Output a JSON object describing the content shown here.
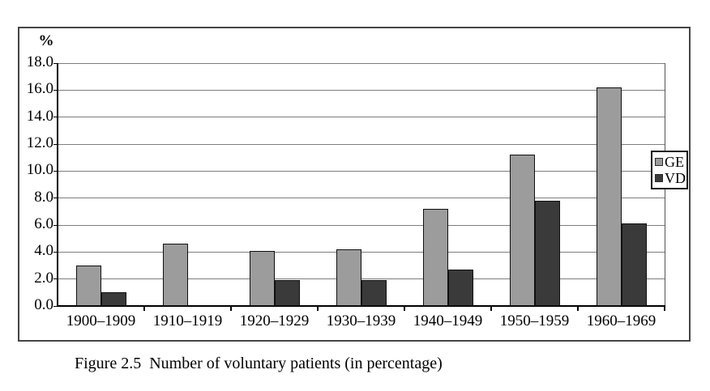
{
  "figure": {
    "caption": "Figure 2.5  Number of voluntary patients (in percentage)"
  },
  "chart_data": {
    "type": "bar",
    "title": "",
    "xlabel": "",
    "ylabel": "%",
    "categories": [
      "1900–1909",
      "1910–1919",
      "1920–1929",
      "1930–1939",
      "1940–1949",
      "1950–1959",
      "1960–1969"
    ],
    "series": [
      {
        "name": "GE",
        "color": "#9c9c9c",
        "values": [
          3.0,
          4.6,
          4.1,
          4.2,
          7.2,
          11.2,
          16.2
        ]
      },
      {
        "name": "VD",
        "color": "#3a3a3a",
        "values": [
          1.0,
          0.0,
          1.9,
          1.9,
          2.7,
          7.8,
          6.1
        ]
      }
    ],
    "ylim": [
      0,
      18
    ],
    "ytick_step": 2,
    "ytick_labels": [
      "0.0",
      "2.0",
      "4.0",
      "6.0",
      "8.0",
      "10.0",
      "12.0",
      "14.0",
      "16.0",
      "18.0"
    ],
    "grid": true,
    "legend_position": "right-inside"
  },
  "colors": {
    "ge_bar": "#9c9c9c",
    "vd_bar": "#3a3a3a",
    "bar_border": "#101010",
    "gridline": "#7d7d7d",
    "axis": "#000000",
    "frame_border": "#454545"
  }
}
